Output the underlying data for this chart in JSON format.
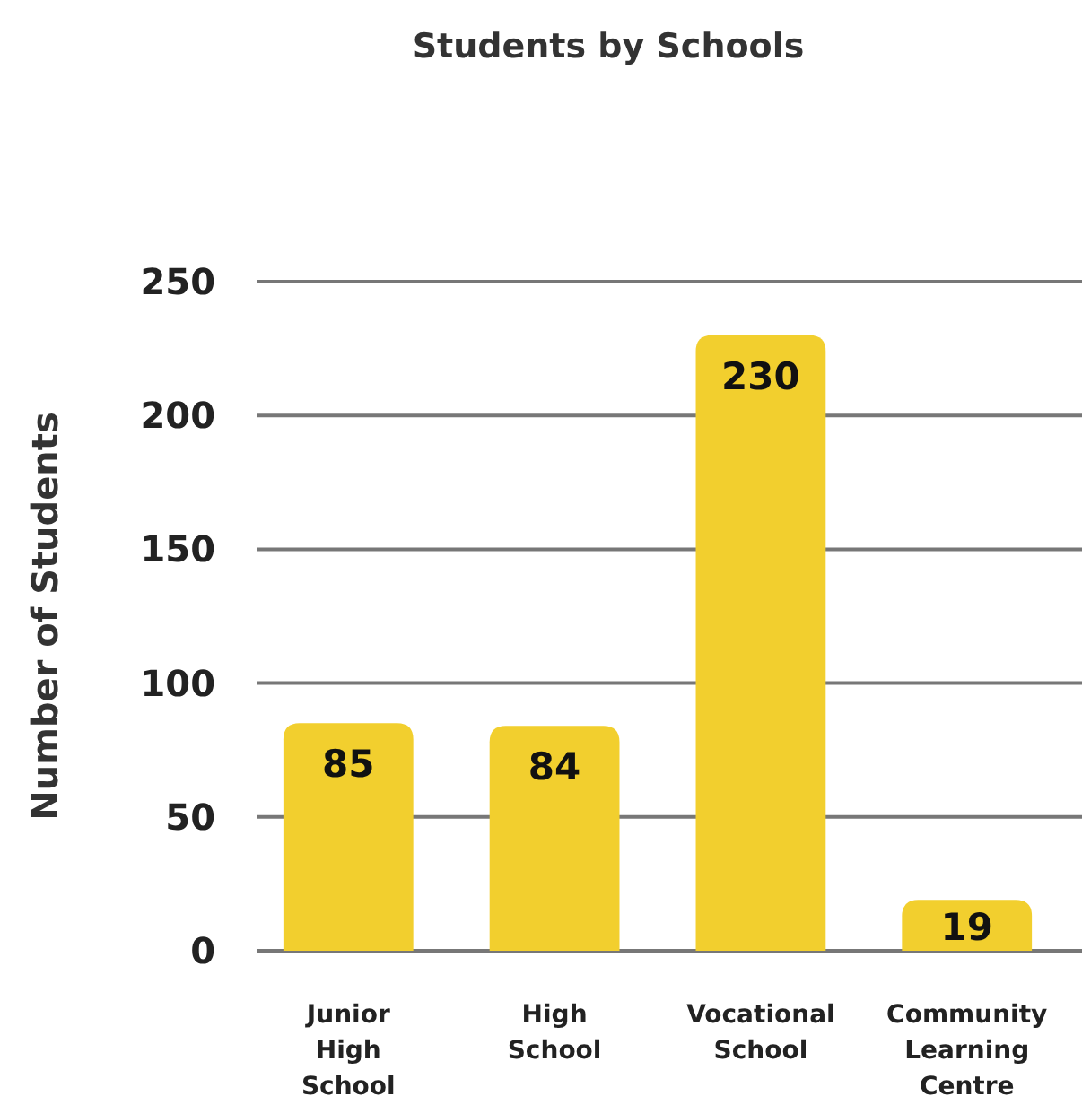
{
  "chart_data": {
    "type": "bar",
    "title": "Students by Schools",
    "ylabel": "Number of Students",
    "categories": [
      "Junior High School",
      "High School",
      "Vocational School",
      "Community Learning Centre"
    ],
    "values": [
      85,
      84,
      230,
      19
    ],
    "color": "#f2cf2e",
    "ylim": [
      0,
      250
    ],
    "yticks": [
      0,
      50,
      100,
      150,
      200,
      250
    ],
    "grid": "y",
    "data_labels": true
  }
}
